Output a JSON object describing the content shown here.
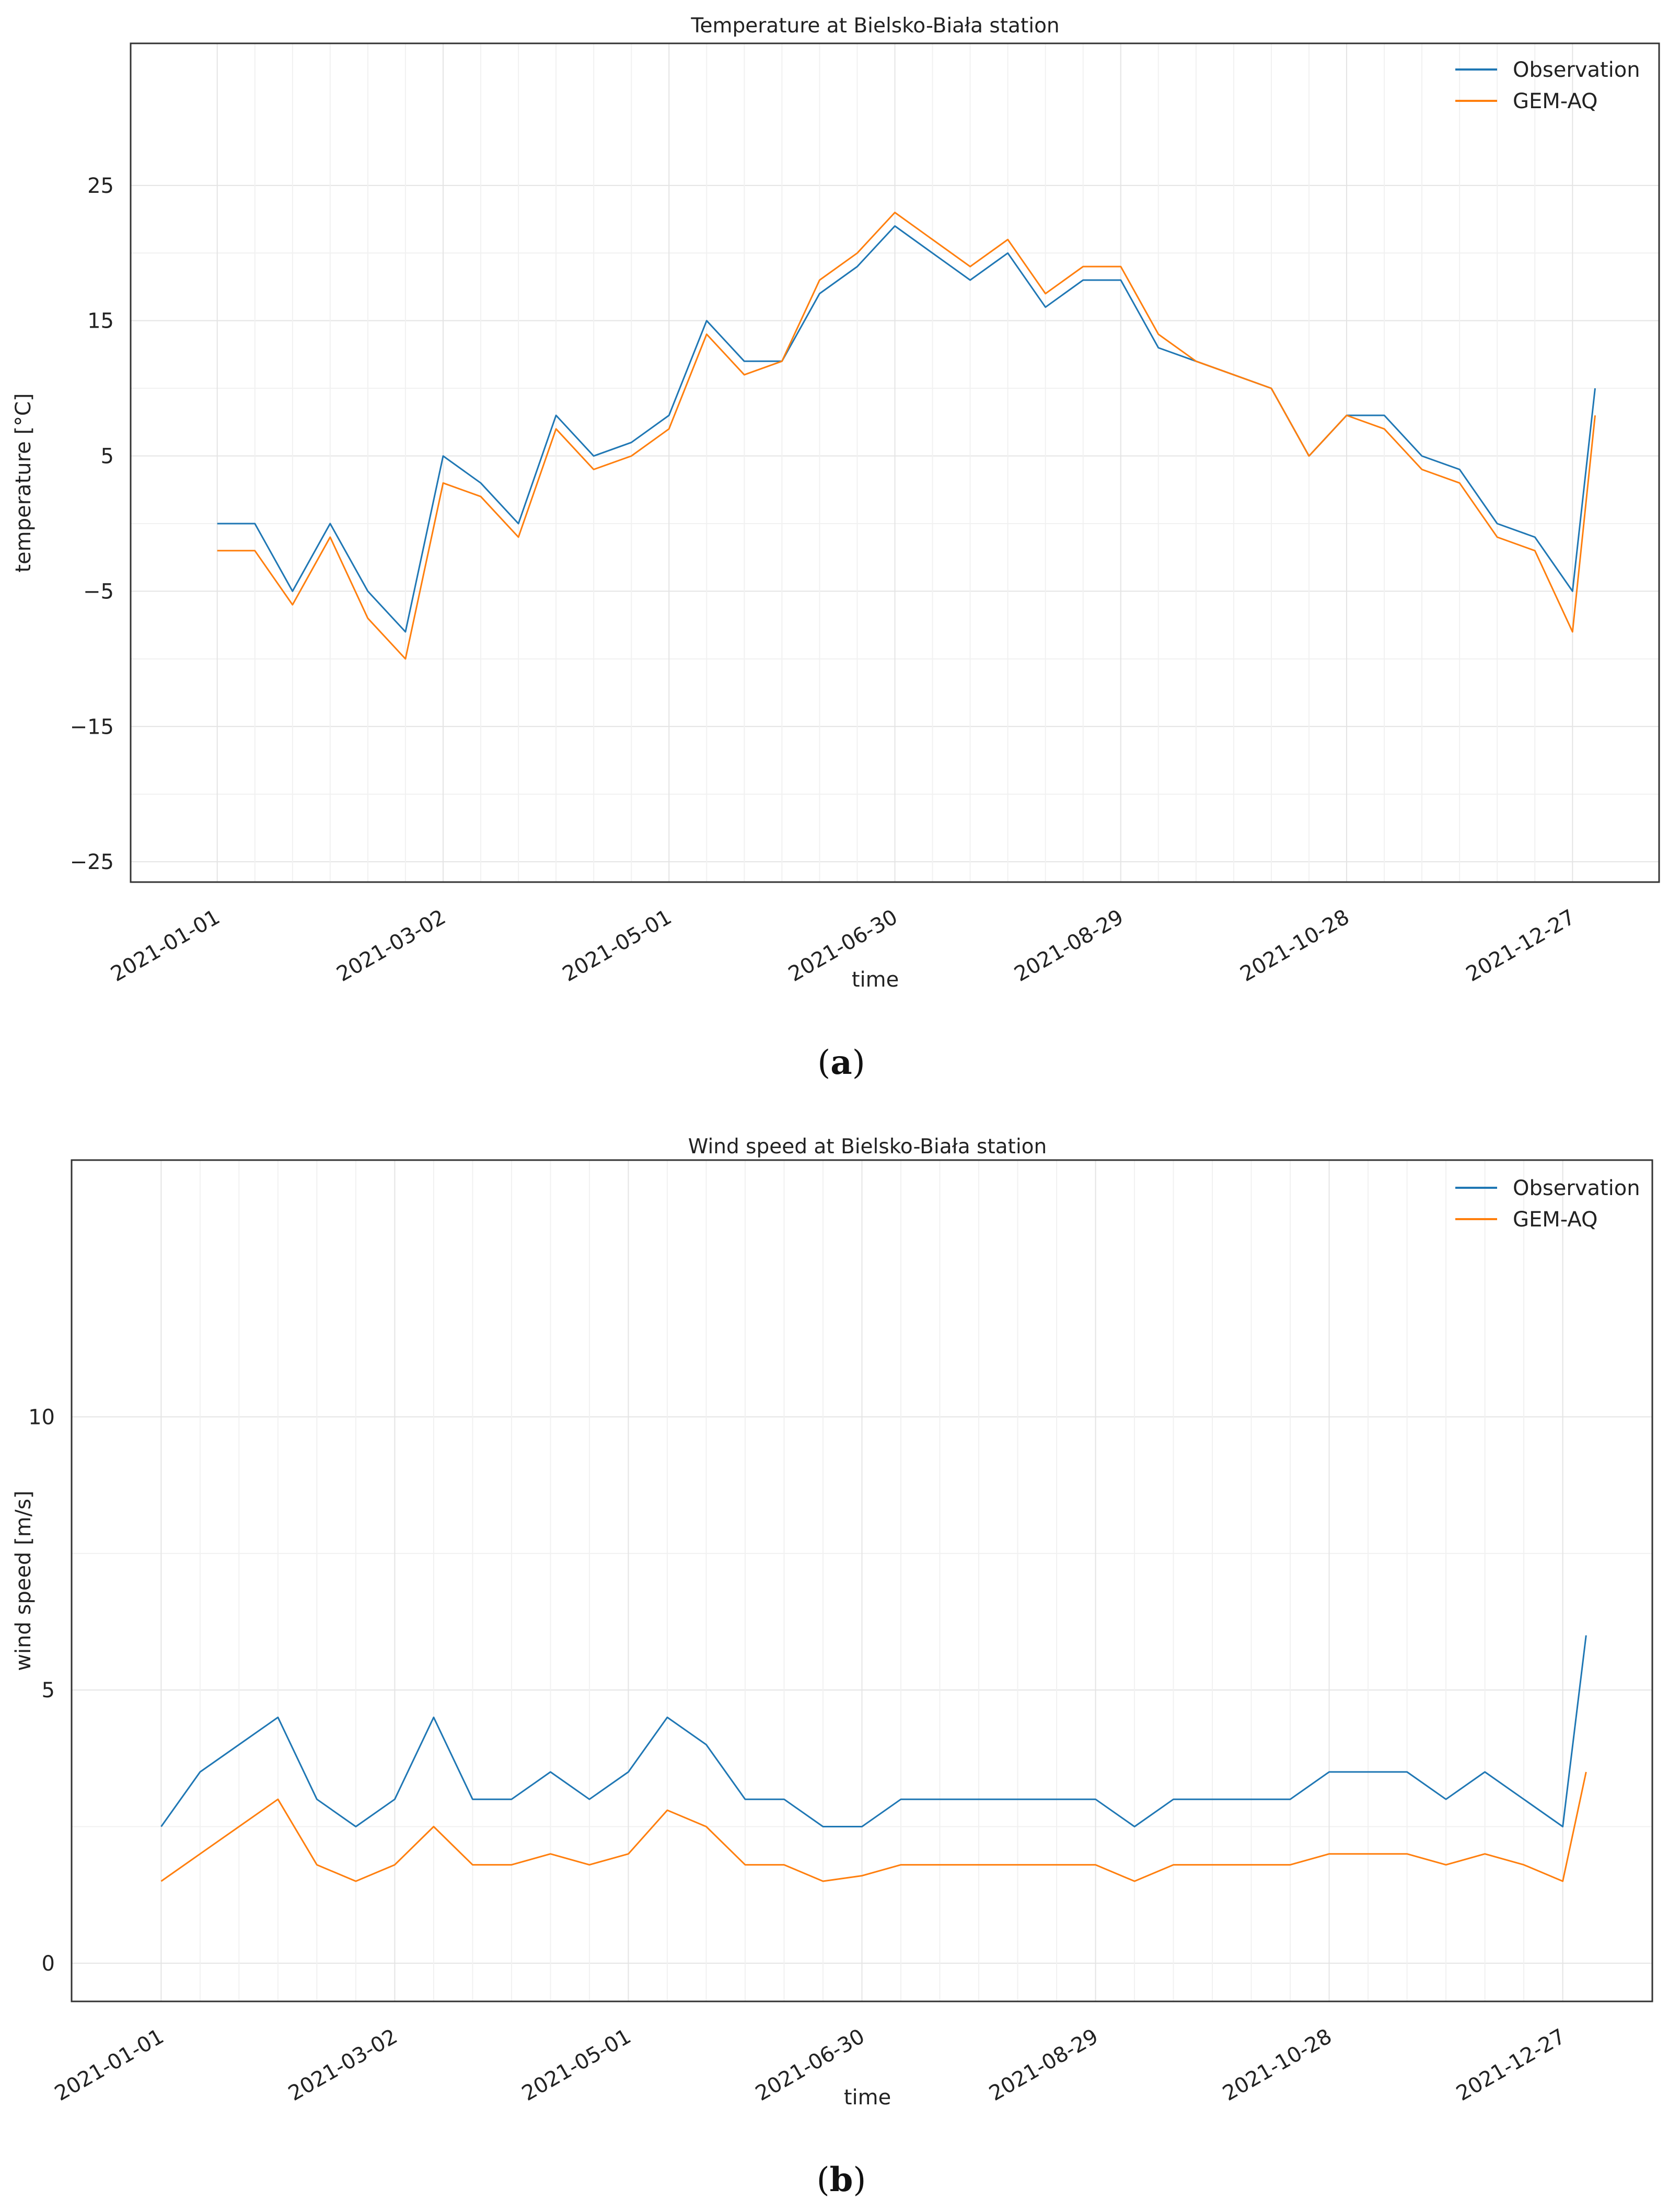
{
  "chart_data": [
    {
      "type": "line",
      "title": "Temperature at Bielsko-Biała station",
      "xlabel": "time",
      "ylabel": "temperature [°C]",
      "ylim": [
        -26.5,
        35.5
      ],
      "yticks": [
        "−25",
        "−15",
        "−5",
        "5",
        "15",
        "25"
      ],
      "ytick_values": [
        -25,
        -15,
        -5,
        5,
        15,
        25
      ],
      "xlim": [
        "2020-12-09",
        "2022-01-19"
      ],
      "xticks": [
        "2021-01-01",
        "2021-03-02",
        "2021-05-01",
        "2021-06-30",
        "2021-08-29",
        "2021-10-28",
        "2021-12-27"
      ],
      "grid": true,
      "legend": "top-right",
      "caption": "a",
      "series": [
        {
          "name": "Observation",
          "color": "#1f77b4",
          "x": [
            "2021-01-01",
            "2021-01-11",
            "2021-01-21",
            "2021-01-31",
            "2021-02-10",
            "2021-02-20",
            "2021-03-02",
            "2021-03-12",
            "2021-03-22",
            "2021-04-01",
            "2021-04-11",
            "2021-04-21",
            "2021-05-01",
            "2021-05-11",
            "2021-05-21",
            "2021-05-31",
            "2021-06-10",
            "2021-06-20",
            "2021-06-30",
            "2021-07-10",
            "2021-07-20",
            "2021-07-30",
            "2021-08-09",
            "2021-08-19",
            "2021-08-29",
            "2021-09-08",
            "2021-09-18",
            "2021-09-28",
            "2021-10-08",
            "2021-10-18",
            "2021-10-28",
            "2021-11-07",
            "2021-11-17",
            "2021-11-27",
            "2021-12-07",
            "2021-12-17",
            "2021-12-27",
            "2022-01-02"
          ],
          "y": [
            0,
            0,
            -5,
            0,
            -5,
            -8,
            5,
            3,
            0,
            8,
            5,
            6,
            8,
            15,
            12,
            12,
            17,
            19,
            22,
            20,
            18,
            20,
            16,
            18,
            18,
            13,
            12,
            11,
            10,
            5,
            8,
            8,
            5,
            4,
            0,
            -1,
            -5,
            10
          ]
        },
        {
          "name": "GEM-AQ",
          "color": "#ff7f0e",
          "x": [
            "2021-01-01",
            "2021-01-11",
            "2021-01-21",
            "2021-01-31",
            "2021-02-10",
            "2021-02-20",
            "2021-03-02",
            "2021-03-12",
            "2021-03-22",
            "2021-04-01",
            "2021-04-11",
            "2021-04-21",
            "2021-05-01",
            "2021-05-11",
            "2021-05-21",
            "2021-05-31",
            "2021-06-10",
            "2021-06-20",
            "2021-06-30",
            "2021-07-10",
            "2021-07-20",
            "2021-07-30",
            "2021-08-09",
            "2021-08-19",
            "2021-08-29",
            "2021-09-08",
            "2021-09-18",
            "2021-09-28",
            "2021-10-08",
            "2021-10-18",
            "2021-10-28",
            "2021-11-07",
            "2021-11-17",
            "2021-11-27",
            "2021-12-07",
            "2021-12-17",
            "2021-12-27",
            "2022-01-02"
          ],
          "y": [
            -2,
            -2,
            -6,
            -1,
            -7,
            -10,
            3,
            2,
            -1,
            7,
            4,
            5,
            7,
            14,
            11,
            12,
            18,
            20,
            23,
            21,
            19,
            21,
            17,
            19,
            19,
            14,
            12,
            11,
            10,
            5,
            8,
            7,
            4,
            3,
            -1,
            -2,
            -8,
            8
          ]
        }
      ]
    },
    {
      "type": "line",
      "title": "Wind speed at Bielsko-Biała station",
      "xlabel": "time",
      "ylabel": "wind speed [m/s]",
      "ylim": [
        -0.7,
        14.7
      ],
      "yticks": [
        "0",
        "5",
        "10"
      ],
      "ytick_values": [
        0,
        5,
        10
      ],
      "xlim": [
        "2020-12-09",
        "2022-01-19"
      ],
      "xticks": [
        "2021-01-01",
        "2021-03-02",
        "2021-05-01",
        "2021-06-30",
        "2021-08-29",
        "2021-10-28",
        "2021-12-27"
      ],
      "grid": true,
      "legend": "top-right",
      "caption": "b",
      "series": [
        {
          "name": "Observation",
          "color": "#1f77b4",
          "x": [
            "2021-01-01",
            "2021-01-11",
            "2021-01-21",
            "2021-01-31",
            "2021-02-10",
            "2021-02-20",
            "2021-03-02",
            "2021-03-12",
            "2021-03-22",
            "2021-04-01",
            "2021-04-11",
            "2021-04-21",
            "2021-05-01",
            "2021-05-11",
            "2021-05-21",
            "2021-05-31",
            "2021-06-10",
            "2021-06-20",
            "2021-06-30",
            "2021-07-10",
            "2021-07-20",
            "2021-07-30",
            "2021-08-09",
            "2021-08-19",
            "2021-08-29",
            "2021-09-08",
            "2021-09-18",
            "2021-09-28",
            "2021-10-08",
            "2021-10-18",
            "2021-10-28",
            "2021-11-07",
            "2021-11-17",
            "2021-11-27",
            "2021-12-07",
            "2021-12-17",
            "2021-12-27",
            "2022-01-02"
          ],
          "y": [
            2.5,
            3.5,
            4,
            4.5,
            3,
            2.5,
            3,
            4.5,
            3,
            3,
            3.5,
            3,
            3.5,
            4.5,
            4,
            3,
            3,
            2.5,
            2.5,
            3,
            3,
            3,
            3,
            3,
            3,
            2.5,
            3,
            3,
            3,
            3,
            3.5,
            3.5,
            3.5,
            3,
            3.5,
            3,
            2.5,
            6
          ]
        },
        {
          "name": "GEM-AQ",
          "color": "#ff7f0e",
          "x": [
            "2021-01-01",
            "2021-01-11",
            "2021-01-21",
            "2021-01-31",
            "2021-02-10",
            "2021-02-20",
            "2021-03-02",
            "2021-03-12",
            "2021-03-22",
            "2021-04-01",
            "2021-04-11",
            "2021-04-21",
            "2021-05-01",
            "2021-05-11",
            "2021-05-21",
            "2021-05-31",
            "2021-06-10",
            "2021-06-20",
            "2021-06-30",
            "2021-07-10",
            "2021-07-20",
            "2021-07-30",
            "2021-08-09",
            "2021-08-19",
            "2021-08-29",
            "2021-09-08",
            "2021-09-18",
            "2021-09-28",
            "2021-10-08",
            "2021-10-18",
            "2021-10-28",
            "2021-11-07",
            "2021-11-17",
            "2021-11-27",
            "2021-12-07",
            "2021-12-17",
            "2021-12-27",
            "2022-01-02"
          ],
          "y": [
            1.5,
            2,
            2.5,
            3,
            1.8,
            1.5,
            1.8,
            2.5,
            1.8,
            1.8,
            2,
            1.8,
            2,
            2.8,
            2.5,
            1.8,
            1.8,
            1.5,
            1.6,
            1.8,
            1.8,
            1.8,
            1.8,
            1.8,
            1.8,
            1.5,
            1.8,
            1.8,
            1.8,
            1.8,
            2,
            2,
            2,
            1.8,
            2,
            1.8,
            1.5,
            3.5
          ]
        }
      ]
    }
  ]
}
